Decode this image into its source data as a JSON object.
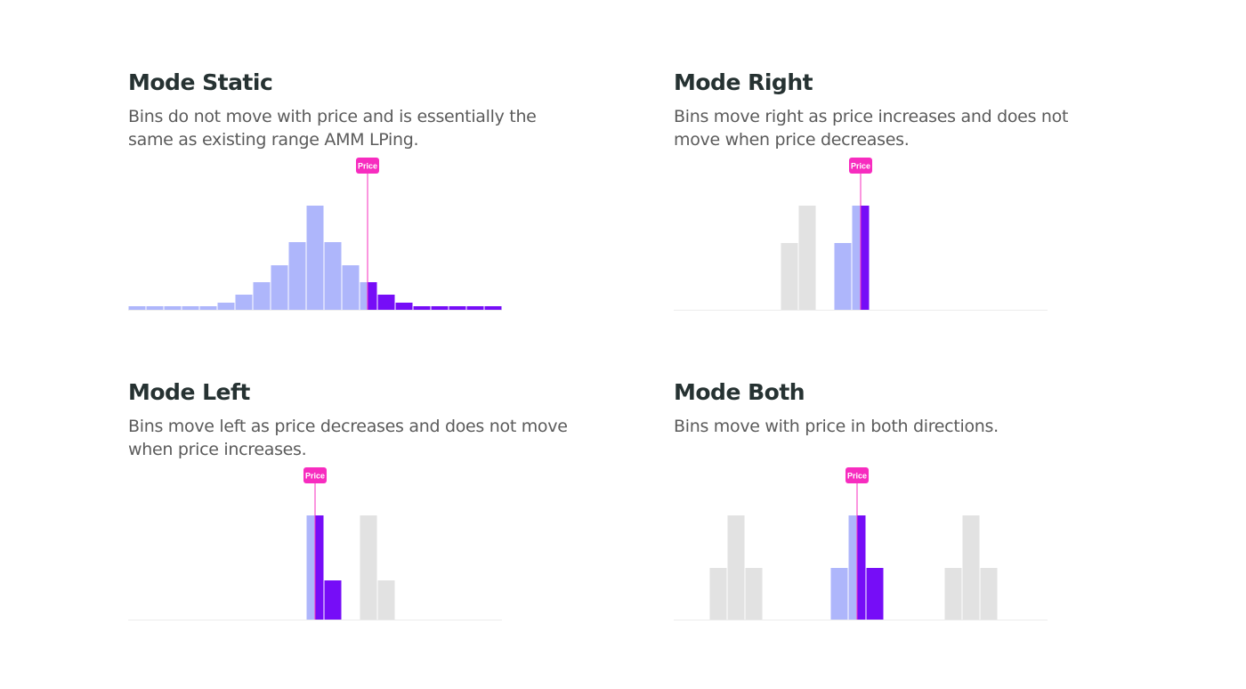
{
  "colors": {
    "in_range_below": "#aeb6fb",
    "in_range_above": "#760df7",
    "out_of_range": "#e2e2e2",
    "price": "#f72cbf",
    "baseline": "#ececec"
  },
  "panels": [
    {
      "title": "Mode Static",
      "description": "Bins do not move with price and is essentially the same as existing range AMM LPing.",
      "chart_data": {
        "type": "bar",
        "price_label": "Price",
        "price_bin": 13.45,
        "ymax": 117,
        "bars": [
          {
            "start": 0,
            "end": 1,
            "value": 4,
            "state": "below"
          },
          {
            "start": 1,
            "end": 2,
            "value": 4,
            "state": "below"
          },
          {
            "start": 2,
            "end": 3,
            "value": 4,
            "state": "below"
          },
          {
            "start": 3,
            "end": 4,
            "value": 4,
            "state": "below"
          },
          {
            "start": 4,
            "end": 5,
            "value": 4,
            "state": "below"
          },
          {
            "start": 5,
            "end": 6,
            "value": 8,
            "state": "below"
          },
          {
            "start": 6,
            "end": 7,
            "value": 17,
            "state": "below"
          },
          {
            "start": 7,
            "end": 8,
            "value": 31,
            "state": "below"
          },
          {
            "start": 8,
            "end": 9,
            "value": 50,
            "state": "below"
          },
          {
            "start": 9,
            "end": 10,
            "value": 76,
            "state": "below"
          },
          {
            "start": 10,
            "end": 11,
            "value": 117,
            "state": "below"
          },
          {
            "start": 11,
            "end": 12,
            "value": 76,
            "state": "below"
          },
          {
            "start": 12,
            "end": 13,
            "value": 50,
            "state": "below"
          },
          {
            "start": 13,
            "end": 13.45,
            "value": 31,
            "state": "below"
          },
          {
            "start": 13.45,
            "end": 14,
            "value": 31,
            "state": "above"
          },
          {
            "start": 14,
            "end": 15,
            "value": 17,
            "state": "above"
          },
          {
            "start": 15,
            "end": 16,
            "value": 8,
            "state": "above"
          },
          {
            "start": 16,
            "end": 17,
            "value": 4,
            "state": "above"
          },
          {
            "start": 17,
            "end": 18,
            "value": 4,
            "state": "above"
          },
          {
            "start": 18,
            "end": 19,
            "value": 4,
            "state": "above"
          },
          {
            "start": 19,
            "end": 20,
            "value": 4,
            "state": "above"
          },
          {
            "start": 20,
            "end": 21,
            "value": 4,
            "state": "above"
          }
        ]
      }
    },
    {
      "title": "Mode Right",
      "description": "Bins move right as price increases and does not move when price decreases.",
      "chart_data": {
        "type": "bar",
        "price_label": "Price",
        "price_bin": 10.5,
        "ymax": 117,
        "bars": [
          {
            "start": 6,
            "end": 7,
            "value": 75,
            "state": "out"
          },
          {
            "start": 7,
            "end": 8,
            "value": 117,
            "state": "out"
          },
          {
            "start": 9,
            "end": 10,
            "value": 75,
            "state": "below"
          },
          {
            "start": 10,
            "end": 10.5,
            "value": 117,
            "state": "below"
          },
          {
            "start": 10.5,
            "end": 11,
            "value": 117,
            "state": "above"
          }
        ]
      }
    },
    {
      "title": "Mode Left",
      "description": "Bins move left as price decreases and does not move when price increases.",
      "chart_data": {
        "type": "bar",
        "price_label": "Price",
        "price_bin": 10.5,
        "ymax": 117,
        "bars": [
          {
            "start": 10,
            "end": 10.5,
            "value": 117,
            "state": "below"
          },
          {
            "start": 10.5,
            "end": 11,
            "value": 117,
            "state": "above"
          },
          {
            "start": 11,
            "end": 12,
            "value": 44,
            "state": "above"
          },
          {
            "start": 13,
            "end": 14,
            "value": 117,
            "state": "out"
          },
          {
            "start": 14,
            "end": 15,
            "value": 44,
            "state": "out"
          }
        ]
      }
    },
    {
      "title": "Mode Both",
      "description": "Bins move with price in both directions.",
      "chart_data": {
        "type": "bar",
        "price_label": "Price",
        "price_bin": 10.3,
        "ymax": 117,
        "bars": [
          {
            "start": 2,
            "end": 3,
            "value": 58,
            "state": "out"
          },
          {
            "start": 3,
            "end": 4,
            "value": 117,
            "state": "out"
          },
          {
            "start": 4,
            "end": 5,
            "value": 58,
            "state": "out"
          },
          {
            "start": 8.8,
            "end": 9.8,
            "value": 58,
            "state": "below"
          },
          {
            "start": 9.8,
            "end": 10.3,
            "value": 117,
            "state": "below"
          },
          {
            "start": 10.3,
            "end": 10.8,
            "value": 117,
            "state": "above"
          },
          {
            "start": 10.8,
            "end": 11.8,
            "value": 58,
            "state": "above"
          },
          {
            "start": 15.2,
            "end": 16.2,
            "value": 58,
            "state": "out"
          },
          {
            "start": 16.2,
            "end": 17.2,
            "value": 117,
            "state": "out"
          },
          {
            "start": 17.2,
            "end": 18.2,
            "value": 58,
            "state": "out"
          }
        ]
      }
    }
  ]
}
